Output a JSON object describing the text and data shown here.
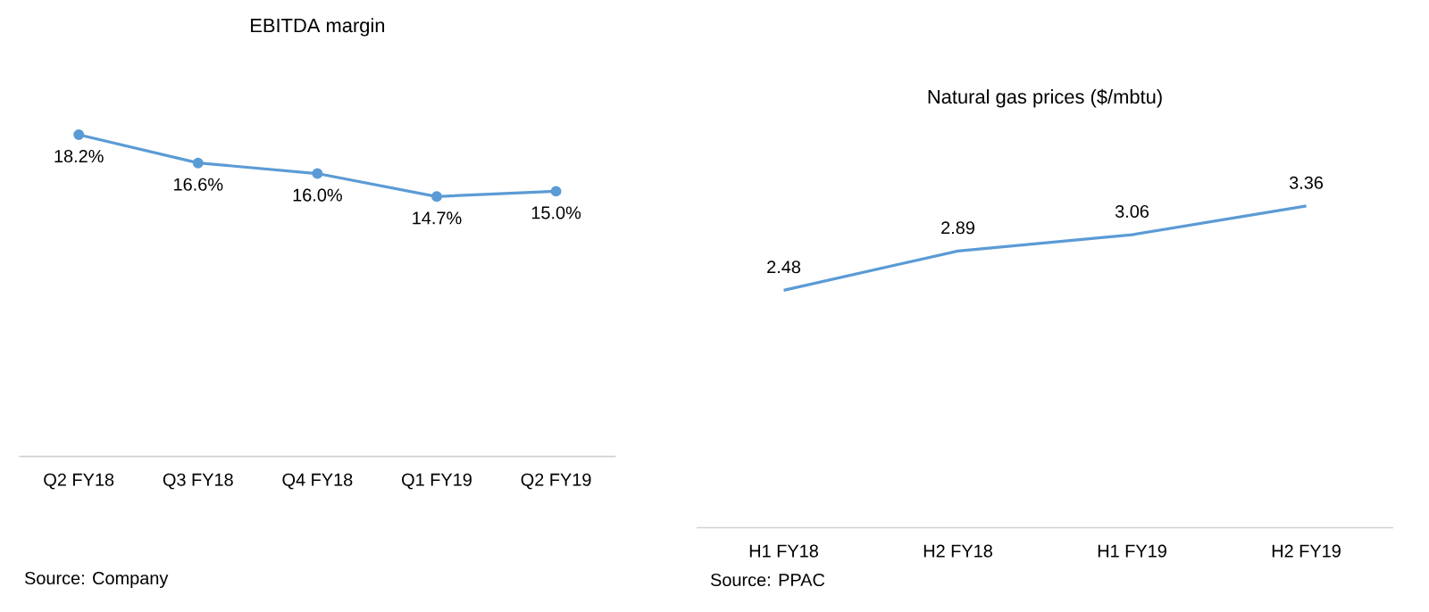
{
  "chart_data": [
    {
      "type": "line",
      "title": "EBITDA margin",
      "categories": [
        "Q2 FY18",
        "Q3 FY18",
        "Q4 FY18",
        "Q1 FY19",
        "Q2 FY19"
      ],
      "values": [
        18.2,
        16.6,
        16.0,
        14.7,
        15.0
      ],
      "value_labels": [
        "18.2%",
        "16.6%",
        "16.0%",
        "14.7%",
        "15.0%"
      ],
      "color": "#5b9bd5",
      "marker": "circle",
      "annotations": [
        "Source: Company"
      ]
    },
    {
      "type": "line",
      "title": "Natural gas prices ($/mbtu)",
      "categories": [
        "H1 FY18",
        "H2 FY18",
        "H1 FY19",
        "H2 FY19"
      ],
      "values": [
        2.48,
        2.89,
        3.06,
        3.36
      ],
      "data_labels": true,
      "color": "#5b9bd5",
      "annotations": [
        "Source: PPAC"
      ]
    }
  ]
}
